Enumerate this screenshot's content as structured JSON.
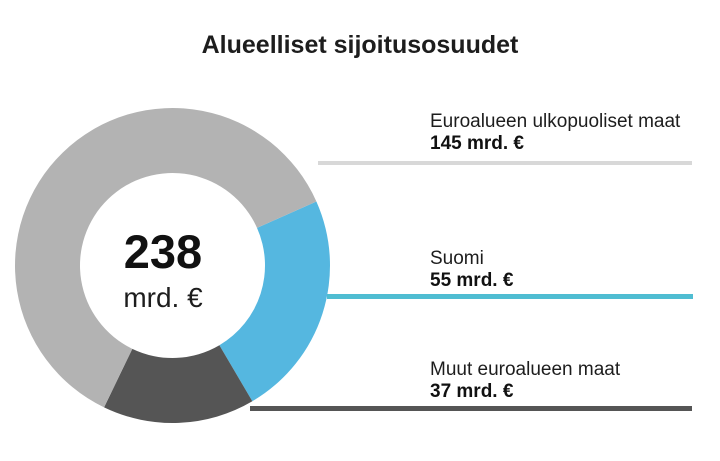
{
  "title": "Alueelliset sijoitusosuudet",
  "chart_data": {
    "type": "pie",
    "variant": "donut",
    "title": "Alueelliset sijoitusosuudet",
    "unit": "mrd. €",
    "total": 238,
    "center_label": {
      "value": "238",
      "unit": "mrd. €"
    },
    "segments": [
      {
        "label": "Euroalueen ulkopuoliset maat",
        "value": 145,
        "value_label": "145 mrd. €",
        "color": "#b3b3b3",
        "line_color": "#d8d8d8"
      },
      {
        "label": "Suomi",
        "value": 55,
        "value_label": "55 mrd. €",
        "color": "#55b7e0",
        "line_color": "#4fbdd2"
      },
      {
        "label": "Muut euroalueen maat",
        "value": 37,
        "value_label": "37 mrd. €",
        "color": "#555555",
        "line_color": "#555555"
      }
    ],
    "layout": {
      "start_angle_deg": 24,
      "clockwise": true,
      "render_order": [
        1,
        2,
        0
      ],
      "legend_position": "right",
      "labels": "leader-lines",
      "grid": false
    }
  }
}
